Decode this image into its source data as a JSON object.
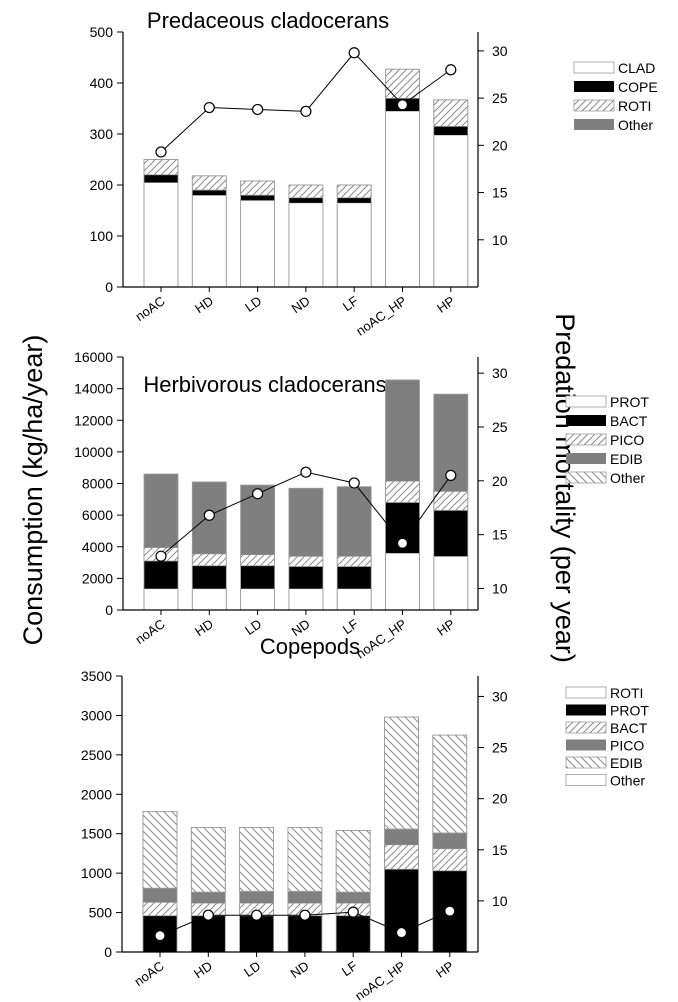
{
  "figure": {
    "ylabel_left": "Consumption (kg/ha/year)",
    "ylabel_right": "Predation mortality (per year)"
  },
  "chart_data": [
    {
      "type": "bar",
      "stacked": true,
      "title": "Predaceous cladocerans",
      "categories": [
        "noAC",
        "HD",
        "LD",
        "ND",
        "LF",
        "noAC_HP",
        "HP"
      ],
      "ylim": [
        0,
        500
      ],
      "yticks": [
        0,
        100,
        200,
        300,
        400,
        500
      ],
      "y2lim": [
        5,
        32
      ],
      "y2ticks": [
        10,
        15,
        20,
        25,
        30
      ],
      "legend_position": "right",
      "series": [
        {
          "name": "CLAD",
          "pattern": "white",
          "values": [
            205,
            180,
            170,
            165,
            165,
            345,
            298
          ]
        },
        {
          "name": "COPE",
          "pattern": "black",
          "values": [
            15,
            10,
            10,
            10,
            10,
            25,
            17
          ]
        },
        {
          "name": "ROTI",
          "pattern": "hatch-diag",
          "values": [
            30,
            28,
            28,
            25,
            25,
            57,
            52
          ]
        },
        {
          "name": "Other",
          "pattern": "gray",
          "values": [
            0,
            0,
            0,
            0,
            0,
            0,
            0
          ]
        }
      ],
      "mortality": [
        19.3,
        24.0,
        23.8,
        23.6,
        29.8,
        24.3,
        28.0
      ],
      "mortality_style": "line-open-circles"
    },
    {
      "type": "bar",
      "stacked": true,
      "title": "Herbivorous cladocerans",
      "categories": [
        "noAC",
        "HD",
        "LD",
        "ND",
        "LF",
        "noAC_HP",
        "HP"
      ],
      "ylim": [
        0,
        16000
      ],
      "yticks": [
        0,
        2000,
        4000,
        6000,
        8000,
        10000,
        12000,
        14000,
        16000
      ],
      "y2lim": [
        8,
        31.5
      ],
      "y2ticks": [
        10,
        15,
        20,
        25,
        30
      ],
      "legend_position": "right",
      "series": [
        {
          "name": "PROT",
          "pattern": "white",
          "values": [
            1350,
            1350,
            1350,
            1350,
            1350,
            3600,
            3400
          ]
        },
        {
          "name": "BACT",
          "pattern": "black",
          "values": [
            1750,
            1450,
            1450,
            1400,
            1400,
            3200,
            2900
          ]
        },
        {
          "name": "PICO",
          "pattern": "hatch-diag",
          "values": [
            850,
            750,
            700,
            650,
            650,
            1350,
            1200
          ]
        },
        {
          "name": "EDIB",
          "pattern": "gray",
          "values": [
            4650,
            4550,
            4400,
            4300,
            4400,
            6400,
            6150
          ]
        },
        {
          "name": "Other",
          "pattern": "hatch-back",
          "values": [
            0,
            0,
            0,
            0,
            0,
            0,
            0
          ]
        }
      ],
      "mortality": [
        13.0,
        16.8,
        18.8,
        20.8,
        19.8,
        14.2,
        20.5
      ],
      "mortality_style": "line-open-circles",
      "mortality_last_point_filled": true
    },
    {
      "type": "bar",
      "stacked": true,
      "title": "Copepods",
      "categories": [
        "noAC",
        "HD",
        "LD",
        "ND",
        "LF",
        "noAC_HP",
        "HP"
      ],
      "ylim": [
        0,
        3500
      ],
      "yticks": [
        0,
        500,
        1000,
        1500,
        2000,
        2500,
        3000,
        3500
      ],
      "y2lim": [
        5,
        32
      ],
      "y2ticks": [
        10,
        15,
        20,
        25,
        30
      ],
      "legend_position": "right",
      "series": [
        {
          "name": "ROTI",
          "pattern": "white",
          "values": [
            0,
            0,
            0,
            0,
            0,
            0,
            0
          ]
        },
        {
          "name": "PROT",
          "pattern": "black",
          "values": [
            460,
            460,
            460,
            460,
            460,
            1050,
            1030
          ]
        },
        {
          "name": "BACT",
          "pattern": "hatch-diag",
          "values": [
            170,
            160,
            160,
            160,
            160,
            310,
            280
          ]
        },
        {
          "name": "PICO",
          "pattern": "gray",
          "values": [
            180,
            140,
            150,
            150,
            140,
            200,
            200
          ]
        },
        {
          "name": "EDIB",
          "pattern": "hatch-back",
          "values": [
            970,
            820,
            810,
            810,
            780,
            1420,
            1240
          ]
        },
        {
          "name": "Other",
          "pattern": "white",
          "values": [
            0,
            0,
            0,
            0,
            0,
            0,
            0
          ]
        }
      ],
      "mortality": [
        6.6,
        8.6,
        8.6,
        8.6,
        8.9,
        6.9,
        9.0
      ],
      "mortality_style": "line-filled-circles"
    }
  ]
}
